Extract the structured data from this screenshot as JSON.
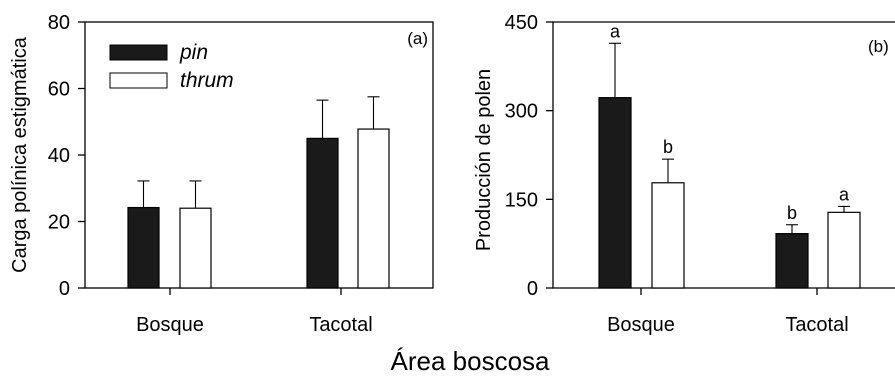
{
  "shared_xlabel": "Área boscosa",
  "colors": {
    "pin": "#1a1a1a",
    "thrum": "#ffffff",
    "axis": "#000000"
  },
  "chart_data": [
    {
      "type": "bar",
      "panel_label": "(a)",
      "categories": [
        "Bosque",
        "Tacotal"
      ],
      "ylabel": "Carga polínica estigmática",
      "ylim": [
        0,
        80
      ],
      "yticks": [
        0,
        20,
        40,
        60,
        80
      ],
      "legend": "top-left",
      "series": [
        {
          "name": "pin",
          "values": [
            24.2,
            45.0
          ],
          "errors": [
            8.0,
            11.5
          ]
        },
        {
          "name": "thrum",
          "values": [
            24.0,
            47.8
          ],
          "errors": [
            8.2,
            9.7
          ]
        }
      ]
    },
    {
      "type": "bar",
      "panel_label": "(b)",
      "categories": [
        "Bosque",
        "Tacotal"
      ],
      "ylabel": "Producción de polen",
      "ylim": [
        0,
        450
      ],
      "yticks": [
        0,
        150,
        300,
        450
      ],
      "series": [
        {
          "name": "pin",
          "values": [
            322,
            92
          ],
          "errors": [
            92,
            15
          ],
          "labels": [
            "a",
            "b"
          ]
        },
        {
          "name": "thrum",
          "values": [
            178,
            128
          ],
          "errors": [
            40,
            10
          ],
          "labels": [
            "b",
            "a"
          ]
        }
      ]
    }
  ]
}
